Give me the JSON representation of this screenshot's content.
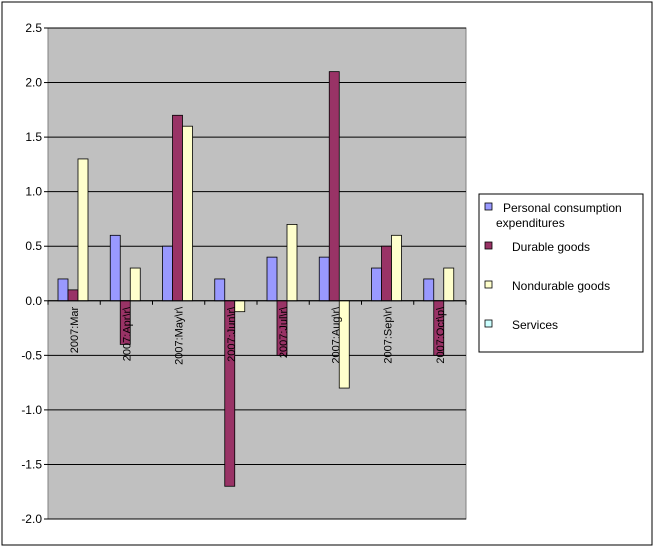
{
  "chart_data": {
    "type": "bar",
    "categories": [
      "2007:Mar",
      "2007:Apr\\r\\",
      "2007:May\\r\\",
      "2007:Jun\\r\\",
      "2007:Jul\\r\\",
      "2007:Aug\\r\\",
      "2007:Sep\\r\\",
      "2007:Oct\\p\\"
    ],
    "series": [
      {
        "name": "Personal consumption expenditures",
        "color": "#9999ff",
        "values": [
          0.2,
          0.6,
          0.5,
          0.2,
          0.4,
          0.4,
          0.3,
          0.2
        ]
      },
      {
        "name": "Durable goods",
        "color": "#993366",
        "values": [
          0.1,
          -0.4,
          1.7,
          -1.7,
          -0.5,
          2.1,
          0.5,
          -0.5
        ]
      },
      {
        "name": "Nondurable goods",
        "color": "#ffffcc",
        "values": [
          1.3,
          0.3,
          1.6,
          -0.1,
          0.7,
          -0.8,
          0.6,
          0.3
        ]
      },
      {
        "name": "Services",
        "color": "#ccffff",
        "values": [
          0,
          0,
          0,
          0,
          0,
          0,
          0,
          0
        ]
      }
    ],
    "yticks": [
      "2.5",
      "2.0",
      "1.5",
      "1.0",
      "0.5",
      "0.0",
      "-0.5",
      "-1.0",
      "-1.5",
      "-2.0"
    ],
    "ylim": [
      -2.0,
      2.5
    ],
    "grid": true,
    "plot_background": "#c0c0c0",
    "legend_position": "right",
    "title": "",
    "xlabel": "",
    "ylabel": ""
  }
}
